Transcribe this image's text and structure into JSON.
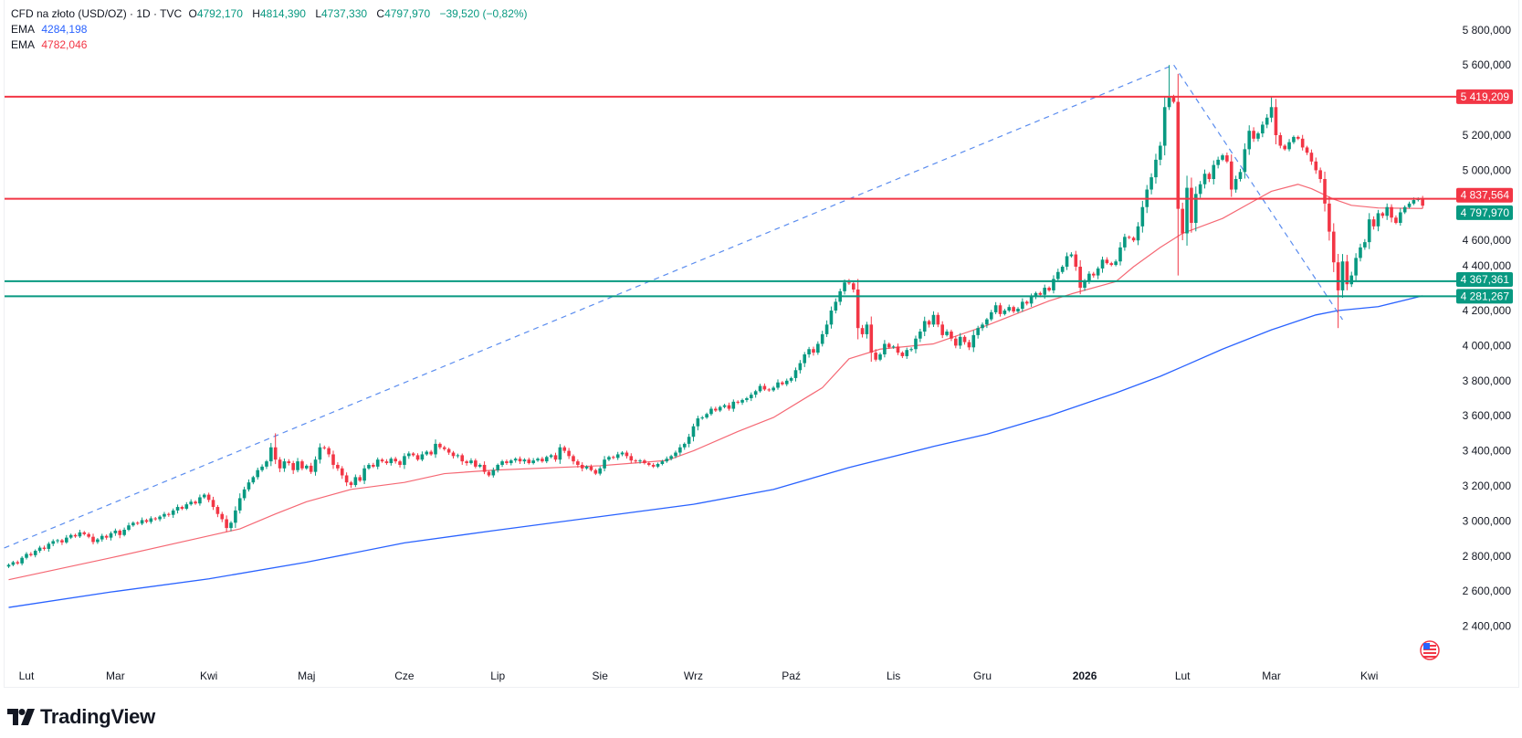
{
  "header": {
    "symbol": "CFD na złoto (USD/OZ) · 1D · TVC",
    "open_label": "O",
    "open": "4792,170",
    "high_label": "H",
    "high": "4814,390",
    "low_label": "L",
    "low": "4737,330",
    "close_label": "C",
    "close": "4797,970",
    "change": "−39,520 (−0,82%)",
    "ema_slow_label": "EMA",
    "ema_slow_value": "4284,198",
    "ema_fast_label": "EMA",
    "ema_fast_value": "4782,046"
  },
  "colors": {
    "up": "#089981",
    "down": "#F23645",
    "ema_slow": "#2962FF",
    "ema_fast": "#F23645",
    "resistance": "#F23645",
    "support": "#089981",
    "trendline": "#5B8DEF"
  },
  "chart_data": {
    "type": "candlestick",
    "interval": "1D",
    "start_date": "2025-01-28",
    "ylim": [
      2200,
      5900
    ],
    "grid": false,
    "y_ticks": [
      "5 800,000",
      "5 600,000",
      "5 200,000",
      "5 000,000",
      "4 600,000",
      "4 400,000",
      "4 200,000",
      "4 000,000",
      "3 800,000",
      "3 600,000",
      "3 400,000",
      "3 200,000",
      "3 000,000",
      "2 800,000",
      "2 600,000",
      "2 400,000"
    ],
    "y_tick_values": [
      5800,
      5600,
      5200,
      5000,
      4600,
      4400,
      4200,
      4000,
      3800,
      3600,
      3400,
      3200,
      3000,
      2800,
      2600,
      2400
    ],
    "x_ticks": [
      "Lut",
      "Mar",
      "Kwi",
      "Maj",
      "Cze",
      "Lip",
      "Sie",
      "Wrz",
      "Paź",
      "Lis",
      "Gru",
      "2026",
      "Lut",
      "Mar",
      "Kwi"
    ],
    "closes": [
      2750,
      2765,
      2758,
      2790,
      2812,
      2805,
      2830,
      2848,
      2841,
      2870,
      2885,
      2890,
      2878,
      2905,
      2920,
      2912,
      2935,
      2925,
      2910,
      2880,
      2895,
      2915,
      2905,
      2930,
      2945,
      2920,
      2950,
      2975,
      2990,
      2985,
      3005,
      2995,
      3015,
      3010,
      3025,
      3040,
      3035,
      3060,
      3080,
      3070,
      3095,
      3110,
      3100,
      3135,
      3150,
      3120,
      3080,
      3040,
      3010,
      2960,
      2990,
      3060,
      3130,
      3180,
      3220,
      3250,
      3290,
      3310,
      3340,
      3420,
      3350,
      3300,
      3340,
      3330,
      3290,
      3340,
      3300,
      3315,
      3280,
      3350,
      3420,
      3415,
      3380,
      3320,
      3300,
      3260,
      3220,
      3205,
      3250,
      3230,
      3300,
      3320,
      3310,
      3350,
      3340,
      3330,
      3355,
      3340,
      3320,
      3370,
      3385,
      3375,
      3350,
      3380,
      3395,
      3380,
      3440,
      3420,
      3410,
      3390,
      3370,
      3375,
      3340,
      3330,
      3345,
      3310,
      3320,
      3280,
      3260,
      3290,
      3320,
      3340,
      3330,
      3345,
      3355,
      3340,
      3350,
      3330,
      3345,
      3355,
      3340,
      3365,
      3375,
      3350,
      3420,
      3400,
      3370,
      3340,
      3320,
      3300,
      3310,
      3290,
      3270,
      3300,
      3350,
      3365,
      3360,
      3380,
      3390,
      3370,
      3345,
      3340,
      3345,
      3330,
      3320,
      3310,
      3325,
      3340,
      3355,
      3370,
      3390,
      3420,
      3440,
      3480,
      3540,
      3585,
      3590,
      3610,
      3640,
      3630,
      3650,
      3660,
      3640,
      3680,
      3675,
      3690,
      3700,
      3720,
      3740,
      3770,
      3750,
      3745,
      3760,
      3790,
      3780,
      3800,
      3815,
      3860,
      3900,
      3950,
      3980,
      3960,
      4010,
      4065,
      4120,
      4200,
      4250,
      4310,
      4360,
      4355,
      4320,
      4100,
      4065,
      4120,
      3960,
      3920,
      3950,
      4010,
      3990,
      3995,
      3960,
      3940,
      3975,
      3980,
      4040,
      4080,
      4140,
      4120,
      4175,
      4120,
      4060,
      4080,
      4040,
      4000,
      4050,
      4020,
      3990,
      4060,
      4100,
      4120,
      4150,
      4190,
      4230,
      4180,
      4200,
      4220,
      4195,
      4210,
      4250,
      4240,
      4280,
      4300,
      4290,
      4330,
      4315,
      4380,
      4420,
      4450,
      4510,
      4520,
      4450,
      4330,
      4370,
      4410,
      4400,
      4440,
      4490,
      4470,
      4460,
      4480,
      4560,
      4620,
      4615,
      4600,
      4680,
      4790,
      4890,
      4960,
      5060,
      5140,
      5360,
      5420,
      5390,
      4780,
      4640,
      4900,
      4700,
      4865,
      4920,
      4980,
      4950,
      5030,
      5060,
      5085,
      5050,
      4890,
      4950,
      4990,
      5120,
      5225,
      5180,
      5210,
      5260,
      5300,
      5360,
      5200,
      5140,
      5120,
      5160,
      5190,
      5180,
      5130,
      5100,
      5050,
      5000,
      4950,
      4810,
      4650,
      4475,
      4315,
      4480,
      4350,
      4400,
      4500,
      4560,
      4590,
      4720,
      4680,
      4755,
      4740,
      4790,
      4730,
      4700,
      4760,
      4790,
      4810,
      4830,
      4837,
      4798
    ],
    "notable_extremes": [
      {
        "bar": 60,
        "high": 3500
      },
      {
        "bar": 189,
        "high": 4380
      },
      {
        "bar": 261,
        "high": 5600
      },
      {
        "bar": 263,
        "low": 4400
      },
      {
        "bar": 284,
        "high": 5420
      },
      {
        "bar": 299,
        "low": 4100
      }
    ],
    "ema_fast": [
      [
        0,
        2665
      ],
      [
        23,
        2790
      ],
      [
        45,
        2915
      ],
      [
        52,
        2955
      ],
      [
        60,
        3040
      ],
      [
        67,
        3110
      ],
      [
        77,
        3180
      ],
      [
        89,
        3220
      ],
      [
        98,
        3270
      ],
      [
        109,
        3290
      ],
      [
        133,
        3315
      ],
      [
        148,
        3345
      ],
      [
        154,
        3400
      ],
      [
        164,
        3510
      ],
      [
        172,
        3590
      ],
      [
        183,
        3760
      ],
      [
        189,
        3925
      ],
      [
        196,
        3980
      ],
      [
        208,
        4010
      ],
      [
        220,
        4115
      ],
      [
        234,
        4255
      ],
      [
        239,
        4295
      ],
      [
        249,
        4365
      ],
      [
        253,
        4450
      ],
      [
        259,
        4560
      ],
      [
        264,
        4640
      ],
      [
        273,
        4725
      ],
      [
        279,
        4810
      ],
      [
        284,
        4880
      ],
      [
        290,
        4920
      ],
      [
        293,
        4895
      ],
      [
        298,
        4835
      ],
      [
        302,
        4800
      ],
      [
        308,
        4785
      ],
      [
        318,
        4782
      ]
    ],
    "ema_slow": [
      [
        0,
        2507
      ],
      [
        23,
        2595
      ],
      [
        45,
        2670
      ],
      [
        67,
        2765
      ],
      [
        89,
        2875
      ],
      [
        109,
        2945
      ],
      [
        133,
        3025
      ],
      [
        154,
        3095
      ],
      [
        172,
        3180
      ],
      [
        189,
        3305
      ],
      [
        208,
        3425
      ],
      [
        220,
        3495
      ],
      [
        234,
        3600
      ],
      [
        249,
        3730
      ],
      [
        259,
        3825
      ],
      [
        264,
        3880
      ],
      [
        273,
        3980
      ],
      [
        284,
        4090
      ],
      [
        294,
        4175
      ],
      [
        299,
        4200
      ],
      [
        308,
        4222
      ],
      [
        318,
        4284
      ]
    ],
    "trendline": [
      [
        -1,
        2846
      ],
      [
        262,
        5601
      ],
      [
        300,
        4148
      ]
    ],
    "horizontal_levels": [
      {
        "price": 5419.209,
        "label": "5 419,209",
        "kind": "resistance"
      },
      {
        "price": 4837.564,
        "label": "4 837,564",
        "kind": "resistance"
      },
      {
        "price": 4367.361,
        "label": "4 367,361",
        "kind": "support"
      },
      {
        "price": 4281.267,
        "label": "4 281,267",
        "kind": "support"
      }
    ],
    "last_price": {
      "price": 4797.97,
      "label": "4 797,970"
    }
  },
  "branding": {
    "name": "TradingView"
  }
}
